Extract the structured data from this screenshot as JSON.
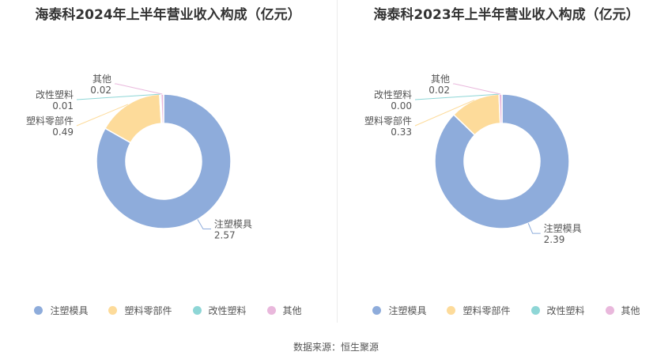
{
  "source": "数据来源：恒生聚源",
  "colors": [
    "#8eacdb",
    "#fddb9a",
    "#8ed6d6",
    "#e9b8dc"
  ],
  "chart_data": [
    {
      "type": "pie",
      "title": "海泰科2024年上半年营业收入构成（亿元）",
      "categories": [
        "注塑模具",
        "塑料零部件",
        "改性塑料",
        "其他"
      ],
      "values": [
        2.57,
        0.49,
        0.01,
        0.02
      ],
      "value_labels": [
        "2.57",
        "0.49",
        "0.01",
        "0.02"
      ],
      "legend": "bottom"
    },
    {
      "type": "pie",
      "title": "海泰科2023年上半年营业收入构成（亿元）",
      "categories": [
        "注塑模具",
        "塑料零部件",
        "改性塑料",
        "其他"
      ],
      "values": [
        2.39,
        0.33,
        0.0,
        0.02
      ],
      "value_labels": [
        "2.39",
        "0.33",
        "0.00",
        "0.02"
      ],
      "legend": "bottom"
    }
  ]
}
